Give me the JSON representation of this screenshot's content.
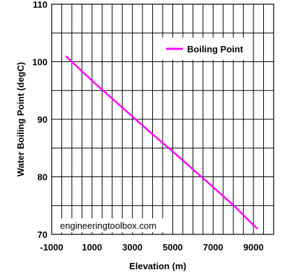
{
  "chart_data": {
    "type": "line",
    "xlabel": "Elevation (m)",
    "ylabel": "Water Boiling Point (degC)",
    "xlim": [
      -1000,
      10000
    ],
    "ylim": [
      70,
      110
    ],
    "xticks": [
      "-1000",
      "1000",
      "3000",
      "5000",
      "7000",
      "9000"
    ],
    "xtick_values": [
      -1000,
      1000,
      3000,
      5000,
      7000,
      9000
    ],
    "yticks": [
      "70",
      "80",
      "90",
      "100",
      "110"
    ],
    "ytick_values": [
      70,
      80,
      90,
      100,
      110
    ],
    "grid": true,
    "legend_position": "top-right",
    "series": [
      {
        "name": "Boiling Point",
        "color": "#ff00ff",
        "x": [
          -300,
          0,
          1000,
          2000,
          3000,
          4000,
          5000,
          6000,
          7000,
          8000,
          9000,
          9200
        ],
        "y": [
          101.0,
          100.0,
          96.7,
          93.6,
          90.5,
          87.4,
          84.4,
          81.3,
          78.2,
          75.1,
          71.6,
          71.0
        ]
      }
    ]
  },
  "watermark": "engineeringtoolbox.com"
}
